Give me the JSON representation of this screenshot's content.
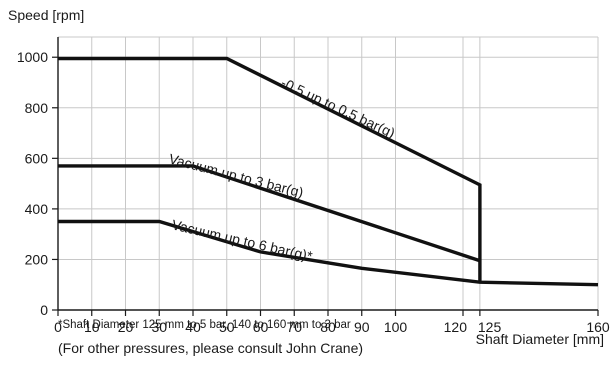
{
  "chart_data": {
    "type": "line",
    "ylabel": "Speed [rpm]",
    "xlabel": "Shaft Diameter [mm]",
    "x_ticks": [
      "0",
      "10",
      "20",
      "30",
      "40",
      "50",
      "60",
      "70",
      "80",
      "90",
      "100",
      "120",
      "125",
      "160"
    ],
    "y_ticks": [
      "0",
      "200",
      "400",
      "600",
      "800",
      "1000"
    ],
    "xlim": [
      0,
      160
    ],
    "ylim": [
      0,
      1080
    ],
    "grid": true,
    "series": [
      {
        "name": "-0.5 up to 0.5 bar(g)",
        "points": [
          [
            0,
            995
          ],
          [
            50,
            995
          ],
          [
            125,
            495
          ],
          [
            125,
            110
          ]
        ]
      },
      {
        "name": "Vacuum up to 3 bar(g)",
        "points": [
          [
            0,
            570
          ],
          [
            40,
            570
          ],
          [
            125,
            195
          ]
        ]
      },
      {
        "name": "Vacuum up to 6 bar(g)*",
        "points": [
          [
            0,
            350
          ],
          [
            30,
            350
          ],
          [
            60,
            230
          ],
          [
            90,
            165
          ],
          [
            125,
            110
          ],
          [
            160,
            100
          ]
        ]
      }
    ],
    "footnote": "*Shaft Diameter 125 mm to 5 bar, 140 to 160 mm to 3 bar",
    "note": "(For other pressures, please consult John Crane)"
  }
}
